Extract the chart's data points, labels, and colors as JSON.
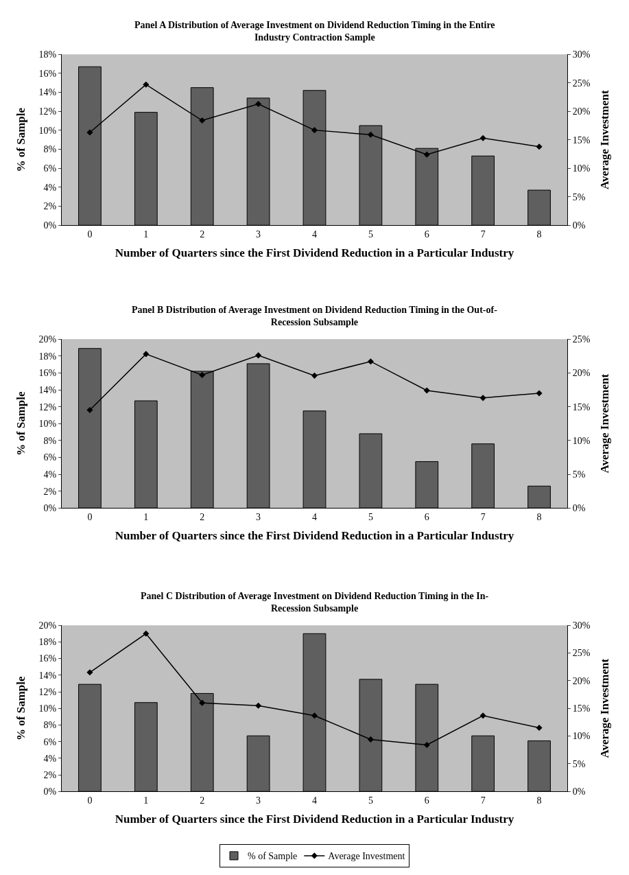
{
  "chart_data": [
    {
      "type": "bar",
      "title": "Panel A Distribution of Average Investment on Dividend Reduction Timing in the Entire Industry Contraction Sample",
      "xlabel": "Number of Quarters since the First Dividend Reduction in a Particular Industry",
      "ylabel": "% of Sample",
      "y2label": "Average Investment",
      "categories": [
        "0",
        "1",
        "2",
        "3",
        "4",
        "5",
        "6",
        "7",
        "8"
      ],
      "series": [
        {
          "color": "#5f5f5f",
          "values": [
            16.7,
            11.9,
            14.5,
            13.4,
            14.2,
            10.5,
            8.1,
            7.3,
            3.7
          ]
        },
        {
          "type": "line",
          "axis": "y2",
          "color": "#000000",
          "marker": "diamond",
          "values": [
            16.3,
            24.7,
            18.4,
            21.3,
            16.7,
            15.9,
            12.4,
            15.3,
            13.8
          ]
        }
      ],
      "ylim": [
        0,
        18
      ],
      "yticks": [
        {
          "value": 0,
          "label": "0%"
        },
        {
          "value": 2,
          "label": "2%"
        },
        {
          "value": 4,
          "label": "4%"
        },
        {
          "value": 6,
          "label": "6%"
        },
        {
          "value": 8,
          "label": "8%"
        },
        {
          "value": 10,
          "label": "10%"
        },
        {
          "value": 12,
          "label": "12%"
        },
        {
          "value": 14,
          "label": "14%"
        },
        {
          "value": 16,
          "label": "16%"
        },
        {
          "value": 18,
          "label": "18%"
        }
      ],
      "y2lim": [
        0,
        30
      ],
      "y2ticks": [
        {
          "value": 0,
          "label": "0%"
        },
        {
          "value": 5,
          "label": "5%"
        },
        {
          "value": 10,
          "label": "10%"
        },
        {
          "value": 15,
          "label": "15%"
        },
        {
          "value": 20,
          "label": "20%"
        },
        {
          "value": 25,
          "label": "25%"
        },
        {
          "value": 30,
          "label": "30%"
        }
      ],
      "grid": false
    },
    {
      "type": "bar",
      "title": "Panel B Distribution of Average Investment on Dividend Reduction Timing in the Out-of-Recession Subsample",
      "xlabel": "Number of Quarters since the First Dividend Reduction in a Particular Industry",
      "ylabel": "% of Sample",
      "y2label": "Average Investment",
      "categories": [
        "0",
        "1",
        "2",
        "3",
        "4",
        "5",
        "6",
        "7",
        "8"
      ],
      "series": [
        {
          "color": "#5f5f5f",
          "values": [
            18.9,
            12.7,
            16.2,
            17.1,
            11.5,
            8.8,
            5.5,
            7.6,
            2.6
          ]
        },
        {
          "type": "line",
          "axis": "y2",
          "color": "#000000",
          "marker": "diamond",
          "values": [
            14.5,
            22.8,
            19.7,
            22.6,
            19.6,
            21.7,
            17.4,
            16.3,
            17.0
          ]
        }
      ],
      "ylim": [
        0,
        20
      ],
      "yticks": [
        {
          "value": 0,
          "label": "0%"
        },
        {
          "value": 2,
          "label": "2%"
        },
        {
          "value": 4,
          "label": "4%"
        },
        {
          "value": 6,
          "label": "6%"
        },
        {
          "value": 8,
          "label": "8%"
        },
        {
          "value": 10,
          "label": "10%"
        },
        {
          "value": 12,
          "label": "12%"
        },
        {
          "value": 14,
          "label": "14%"
        },
        {
          "value": 16,
          "label": "16%"
        },
        {
          "value": 18,
          "label": "18%"
        },
        {
          "value": 20,
          "label": "20%"
        }
      ],
      "y2lim": [
        0,
        25
      ],
      "y2ticks": [
        {
          "value": 0,
          "label": "0%"
        },
        {
          "value": 5,
          "label": "5%"
        },
        {
          "value": 10,
          "label": "10%"
        },
        {
          "value": 15,
          "label": "15%"
        },
        {
          "value": 20,
          "label": "20%"
        },
        {
          "value": 25,
          "label": "25%"
        }
      ],
      "grid": false
    },
    {
      "type": "bar",
      "title": "Panel C Distribution of Average Investment on Dividend Reduction Timing in the In-Recession Subsample",
      "xlabel": "Number of Quarters since the First Dividend Reduction in a Particular Industry",
      "ylabel": "% of Sample",
      "y2label": "Average Investment",
      "categories": [
        "0",
        "1",
        "2",
        "3",
        "4",
        "5",
        "6",
        "7",
        "8"
      ],
      "series": [
        {
          "name": "% of Sample",
          "color": "#5f5f5f",
          "values": [
            12.9,
            10.7,
            11.8,
            6.7,
            19.0,
            13.5,
            12.9,
            6.7,
            6.1
          ]
        },
        {
          "name": "Average Investment",
          "type": "line",
          "axis": "y2",
          "color": "#000000",
          "marker": "diamond",
          "values": [
            21.5,
            28.5,
            16.0,
            15.5,
            13.7,
            9.4,
            8.4,
            13.7,
            11.5
          ]
        }
      ],
      "ylim": [
        0,
        20
      ],
      "yticks": [
        {
          "value": 0,
          "label": "0%"
        },
        {
          "value": 2,
          "label": "2%"
        },
        {
          "value": 4,
          "label": "4%"
        },
        {
          "value": 6,
          "label": "6%"
        },
        {
          "value": 8,
          "label": "8%"
        },
        {
          "value": 10,
          "label": "10%"
        },
        {
          "value": 12,
          "label": "12%"
        },
        {
          "value": 14,
          "label": "14%"
        },
        {
          "value": 16,
          "label": "16%"
        },
        {
          "value": 18,
          "label": "18%"
        },
        {
          "value": 20,
          "label": "20%"
        }
      ],
      "y2lim": [
        0,
        30
      ],
      "y2ticks": [
        {
          "value": 0,
          "label": "0%"
        },
        {
          "value": 5,
          "label": "5%"
        },
        {
          "value": 10,
          "label": "10%"
        },
        {
          "value": 15,
          "label": "15%"
        },
        {
          "value": 20,
          "label": "20%"
        },
        {
          "value": 25,
          "label": "25%"
        },
        {
          "value": 30,
          "label": "30%"
        }
      ],
      "grid": false,
      "legend": "bottom"
    }
  ]
}
